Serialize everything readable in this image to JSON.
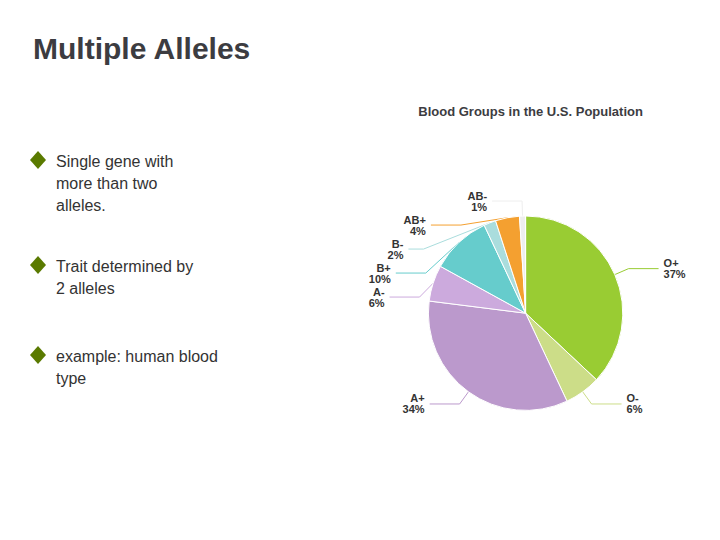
{
  "chart_data": {
    "type": "pie",
    "title": "Multiple Alleles",
    "subtitle": "Blood Groups in the U.S. Population",
    "annotations": [
      "Single gene with\nmore than two\nalleles.",
      "Trait determined by\n2 alleles",
      "example: human blood\ntype"
    ],
    "categories": [
      "O+",
      "O-",
      "A+",
      "A-",
      "B+",
      "B-",
      "AB+",
      "AB-"
    ],
    "values": [
      37,
      6,
      34,
      6,
      10,
      2,
      4,
      1
    ],
    "value_labels": [
      "37%",
      "6%",
      "34%",
      "6%",
      "10%",
      "2%",
      "4%",
      "1%"
    ],
    "data_labels": true,
    "colors": [
      "#99CC33",
      "#CCDD88",
      "#BB99CC",
      "#CCAADD",
      "#66CCCC",
      "#AADDDD",
      "#F4A030",
      "#EEEEEE"
    ]
  }
}
